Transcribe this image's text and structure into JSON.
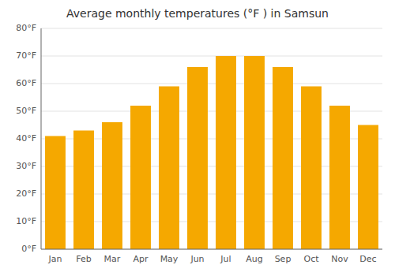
{
  "chart_data": {
    "type": "bar",
    "title": "Average monthly temperatures (°F ) in Samsun",
    "categories": [
      "Jan",
      "Feb",
      "Mar",
      "Apr",
      "May",
      "Jun",
      "Jul",
      "Aug",
      "Sep",
      "Oct",
      "Nov",
      "Dec"
    ],
    "values": [
      41,
      43,
      46,
      52,
      59,
      66,
      70,
      70,
      66,
      59,
      52,
      45
    ],
    "color": "#F5A800",
    "ylim": [
      0,
      80
    ],
    "yticks": [
      {
        "value": 0,
        "label": "0°F"
      },
      {
        "value": 10,
        "label": "10°F"
      },
      {
        "value": 20,
        "label": "20°F"
      },
      {
        "value": 30,
        "label": "30°F"
      },
      {
        "value": 40,
        "label": "40°F"
      },
      {
        "value": 50,
        "label": "50°F"
      },
      {
        "value": 60,
        "label": "60°F"
      },
      {
        "value": 70,
        "label": "70°F"
      },
      {
        "value": 80,
        "label": "80°F"
      }
    ],
    "grid": true
  }
}
